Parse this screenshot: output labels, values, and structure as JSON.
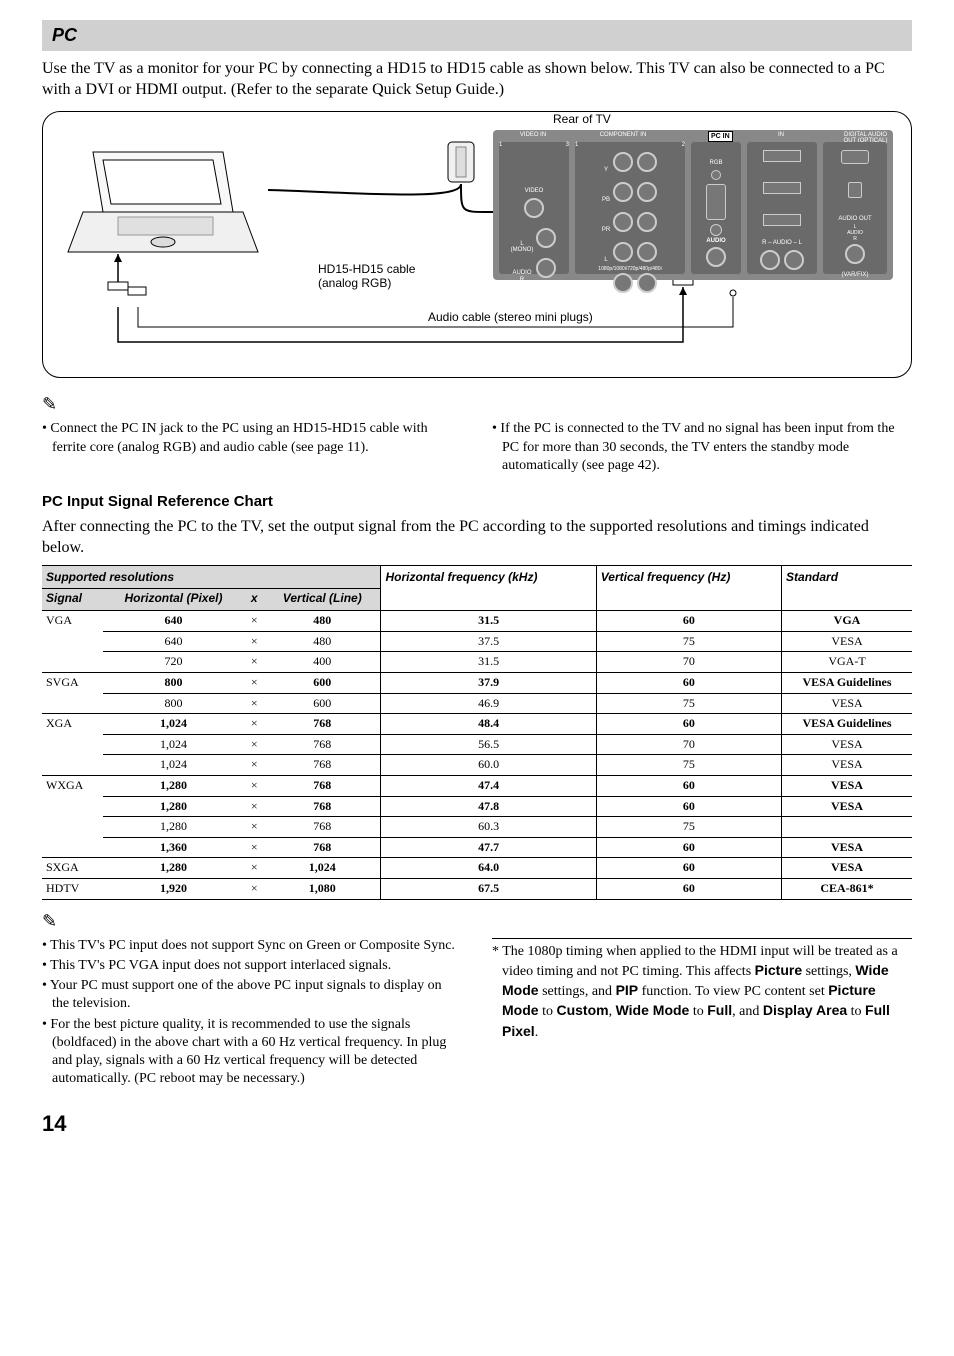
{
  "section_title": "PC",
  "intro": "Use the TV as a monitor for your PC by connecting a HD15 to HD15 cable as shown below. This TV can also be connected to a PC with a DVI or HDMI output. (Refer to the separate Quick Setup Guide.)",
  "diagram": {
    "rear_label": "Rear of TV",
    "hd15_label": "HD15-HD15 cable (analog RGB)",
    "audio_cable_label": "Audio cable (stereo mini plugs)",
    "pc_in": "PC  IN",
    "panel_labels": {
      "video_in": "VIDEO IN",
      "component_in": "COMPONENT IN",
      "hdmi_in": "IN",
      "digital_audio": "DIGITAL AUDIO OUT (OPTICAL)",
      "audio_out": "AUDIO OUT",
      "rgb": "RGB",
      "audio": "AUDIO",
      "y": "Y",
      "pb": "PB",
      "pr": "PR",
      "video": "VIDEO",
      "l_mono": "L (MONO)",
      "l": "L",
      "r": "R",
      "r_audio_l": "R – AUDIO – L",
      "varfix": "(VAR/FIX)",
      "res": "1080p/1080i/720p/480p/480i"
    }
  },
  "notes1": {
    "left": "• Connect the PC IN jack to the PC using an HD15-HD15 cable with ferrite core (analog RGB) and audio cable (see page 11).",
    "right": "• If the PC is connected to the TV and no signal has been input from the PC for more than 30 seconds, the TV enters the standby mode automatically (see page 42)."
  },
  "chart": {
    "heading": "PC Input Signal Reference Chart",
    "intro": "After connecting the PC to the TV, set the output signal from the PC according to the supported resolutions and timings indicated below.",
    "supported": "Supported resolutions",
    "cols": {
      "signal": "Signal",
      "hpixel": "Horizontal (Pixel)",
      "x": "x",
      "vline": "Vertical (Line)",
      "hfreq": "Horizontal frequency (kHz)",
      "vfreq": "Vertical frequency (Hz)",
      "standard": "Standard"
    },
    "rows": [
      {
        "sig": "VGA",
        "h": "640",
        "v": "480",
        "hf": "31.5",
        "vf": "60",
        "std": "VGA",
        "bold": true,
        "first": true
      },
      {
        "sig": "",
        "h": "640",
        "v": "480",
        "hf": "37.5",
        "vf": "75",
        "std": "VESA",
        "bold": false
      },
      {
        "sig": "",
        "h": "720",
        "v": "400",
        "hf": "31.5",
        "vf": "70",
        "std": "VGA-T",
        "bold": false,
        "last": true
      },
      {
        "sig": "SVGA",
        "h": "800",
        "v": "600",
        "hf": "37.9",
        "vf": "60",
        "std": "VESA Guidelines",
        "bold": true,
        "first": true
      },
      {
        "sig": "",
        "h": "800",
        "v": "600",
        "hf": "46.9",
        "vf": "75",
        "std": "VESA",
        "bold": false,
        "last": true
      },
      {
        "sig": "XGA",
        "h": "1,024",
        "v": "768",
        "hf": "48.4",
        "vf": "60",
        "std": "VESA Guidelines",
        "bold": true,
        "first": true
      },
      {
        "sig": "",
        "h": "1,024",
        "v": "768",
        "hf": "56.5",
        "vf": "70",
        "std": "VESA",
        "bold": false
      },
      {
        "sig": "",
        "h": "1,024",
        "v": "768",
        "hf": "60.0",
        "vf": "75",
        "std": "VESA",
        "bold": false,
        "last": true
      },
      {
        "sig": "WXGA",
        "h": "1,280",
        "v": "768",
        "hf": "47.4",
        "vf": "60",
        "std": "VESA",
        "bold": true,
        "first": true
      },
      {
        "sig": "",
        "h": "1,280",
        "v": "768",
        "hf": "47.8",
        "vf": "60",
        "std": "VESA",
        "bold": true
      },
      {
        "sig": "",
        "h": "1,280",
        "v": "768",
        "hf": "60.3",
        "vf": "75",
        "std": "",
        "bold": false
      },
      {
        "sig": "",
        "h": "1,360",
        "v": "768",
        "hf": "47.7",
        "vf": "60",
        "std": "VESA",
        "bold": true,
        "last": true
      },
      {
        "sig": "SXGA",
        "h": "1,280",
        "v": "1,024",
        "hf": "64.0",
        "vf": "60",
        "std": "VESA",
        "bold": true,
        "first": true,
        "last": true
      },
      {
        "sig": "HDTV",
        "h": "1,920",
        "v": "1,080",
        "hf": "67.5",
        "vf": "60",
        "std": "CEA-861*",
        "bold": true,
        "first": true,
        "last": true
      }
    ]
  },
  "notes2": {
    "l1": "• This TV's PC input does not support Sync on Green or Composite Sync.",
    "l2": "• This TV's PC VGA input does not support interlaced signals.",
    "l3": "• Your PC must support one of the above PC input signals to display on the television.",
    "l4": "• For the best picture quality, it is recommended to use the signals (boldfaced) in the above chart with a 60 Hz vertical frequency. In plug and play, signals with a 60 Hz vertical frequency will be detected automatically. (PC reboot may be necessary.)",
    "r_pre": "* The 1080p timing when applied to the HDMI input will be treated as a video timing and not PC timing. This affects ",
    "r_k1": "Picture",
    "r_t1": " settings, ",
    "r_k2": "Wide Mode",
    "r_t2": " settings, and ",
    "r_k3": "PIP",
    "r_t3": " function. To view PC content set ",
    "r_k4": "Picture Mode",
    "r_t4": " to ",
    "r_k5": "Custom",
    "r_t5": ", ",
    "r_k6": "Wide Mode",
    "r_t6": " to ",
    "r_k7": "Full",
    "r_t7": ", and ",
    "r_k8": "Display Area",
    "r_t8": " to ",
    "r_k9": "Full Pixel",
    "r_t9": "."
  },
  "page": "14"
}
